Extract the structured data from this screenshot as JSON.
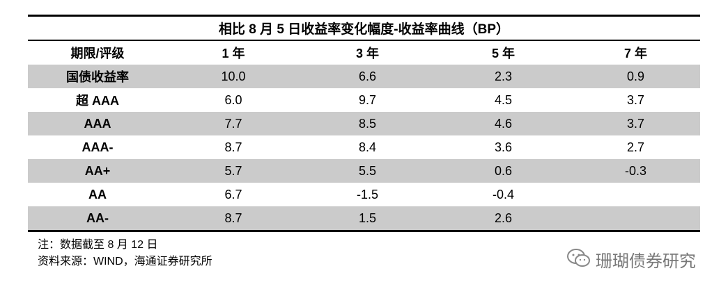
{
  "table": {
    "title": "相比 8 月 5 日收益率变化幅度-收益率曲线（BP）",
    "header": [
      "期限/评级",
      "1 年",
      "3 年",
      "5 年",
      "7 年"
    ],
    "rows": [
      [
        "国债收益率",
        "10.0",
        "6.6",
        "2.3",
        "0.9"
      ],
      [
        "超 AAA",
        "6.0",
        "9.7",
        "4.5",
        "3.7"
      ],
      [
        "AAA",
        "7.7",
        "8.5",
        "4.6",
        "3.7"
      ],
      [
        "AAA-",
        "8.7",
        "8.4",
        "3.6",
        "2.7"
      ],
      [
        "AA+",
        "5.7",
        "5.5",
        "0.6",
        "-0.3"
      ],
      [
        "AA",
        "6.7",
        "-1.5",
        "-0.4",
        null
      ],
      [
        "AA-",
        "8.7",
        "1.5",
        "2.6",
        null
      ]
    ]
  },
  "notes": [
    "注：数据截至 8 月 12 日",
    "资料来源：WIND，海通证券研究所"
  ],
  "watermark": "珊瑚债券研究"
}
